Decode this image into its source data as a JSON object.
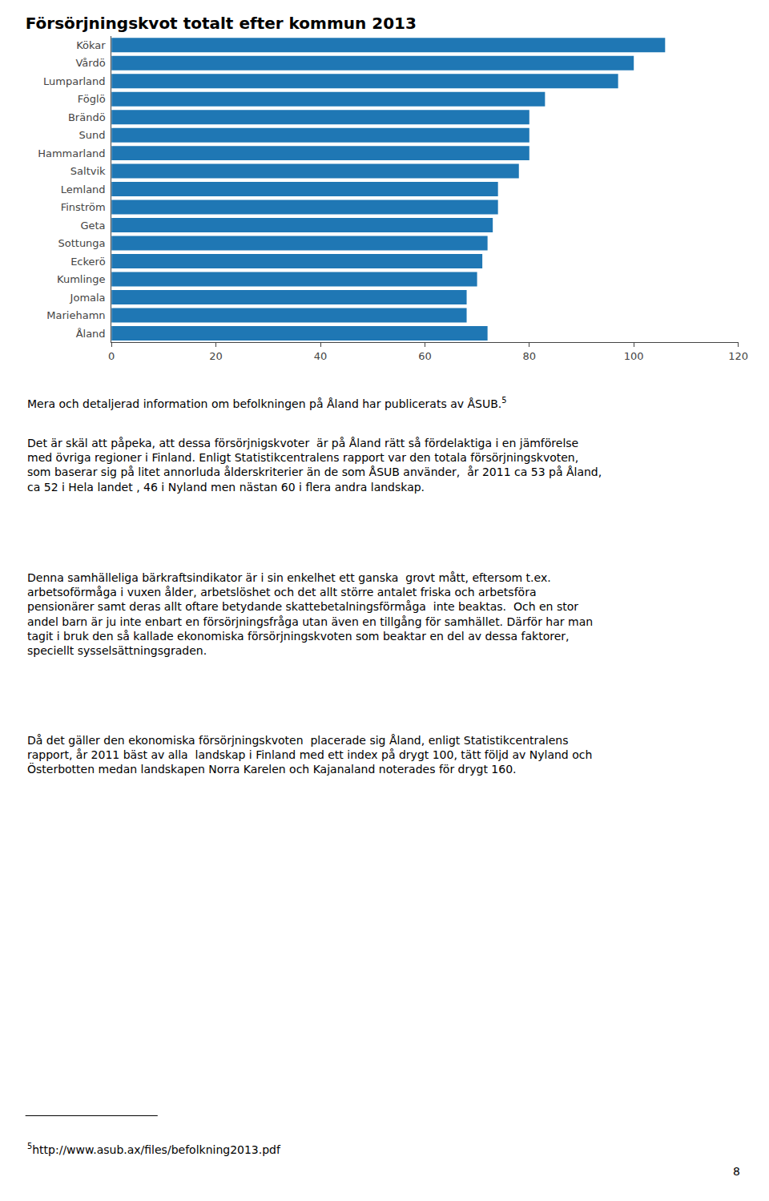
{
  "chart_data": {
    "type": "bar",
    "orientation": "horizontal",
    "title": "Försörjningskvot totalt efter kommun 2013",
    "categories": [
      "Kökar",
      "Vårdö",
      "Lumparland",
      "Föglö",
      "Brändö",
      "Sund",
      "Hammarland",
      "Saltvik",
      "Lemland",
      "Finström",
      "Geta",
      "Sottunga",
      "Eckerö",
      "Kumlinge",
      "Jomala",
      "Mariehamn",
      "Åland"
    ],
    "values": [
      106,
      100,
      97,
      83,
      80,
      80,
      80,
      78,
      74,
      74,
      73,
      72,
      71,
      70,
      68,
      68,
      72
    ],
    "xlim": [
      0,
      120
    ],
    "xticks": [
      0,
      20,
      40,
      60,
      80,
      100,
      120
    ],
    "grid": false,
    "annotations": [
      "Mera och detaljerad information om befolkningen på Åland har publicerats av ÅSUB.",
      "5",
      "Det är skäl att påpeka, att dessa försörjnigskvoter  är på Åland rätt så fördelaktiga i en jämförelse\nmed övriga regioner i Finland. Enligt Statistikcentralens rapport var den totala försörjningskvoten,\nsom baserar sig på litet annorluda ålderskriterier än de som ÅSUB använder,  år 2011 ca 53 på Åland,\nca 52 i Hela landet , 46 i Nyland men nästan 60 i flera andra landskap.",
      "Denna samhälleliga bärkraftsindikator är i sin enkelhet ett ganska  grovt mått, eftersom t.ex.\narbetsoförmåga i vuxen ålder, arbetslöshet och det allt större antalet friska och arbetsföra\npensionärer samt deras allt oftare betydande skattebetalningsförmåga  inte beaktas.  Och en stor\nandel barn är ju inte enbart en försörjningsfråga utan även en tillgång för samhället. Därför har man\ntagit i bruk den så kallade ekonomiska försörjningskvoten som beaktar en del av dessa faktorer,\nspeciellt sysselsättningsgraden.",
      "Då det gäller den ekonomiska försörjningskvoten  placerade sig Åland, enligt Statistikcentralens\nrapport, år 2011 bäst av alla  landskap i Finland med ett index på drygt 100, tätt följd av Nyland och\nÖsterbotten medan landskapen Norra Karelen och Kajanaland noterades för drygt 160.",
      "5",
      "http://www.asub.ax/files/befolkning2013.pdf",
      "8"
    ]
  }
}
